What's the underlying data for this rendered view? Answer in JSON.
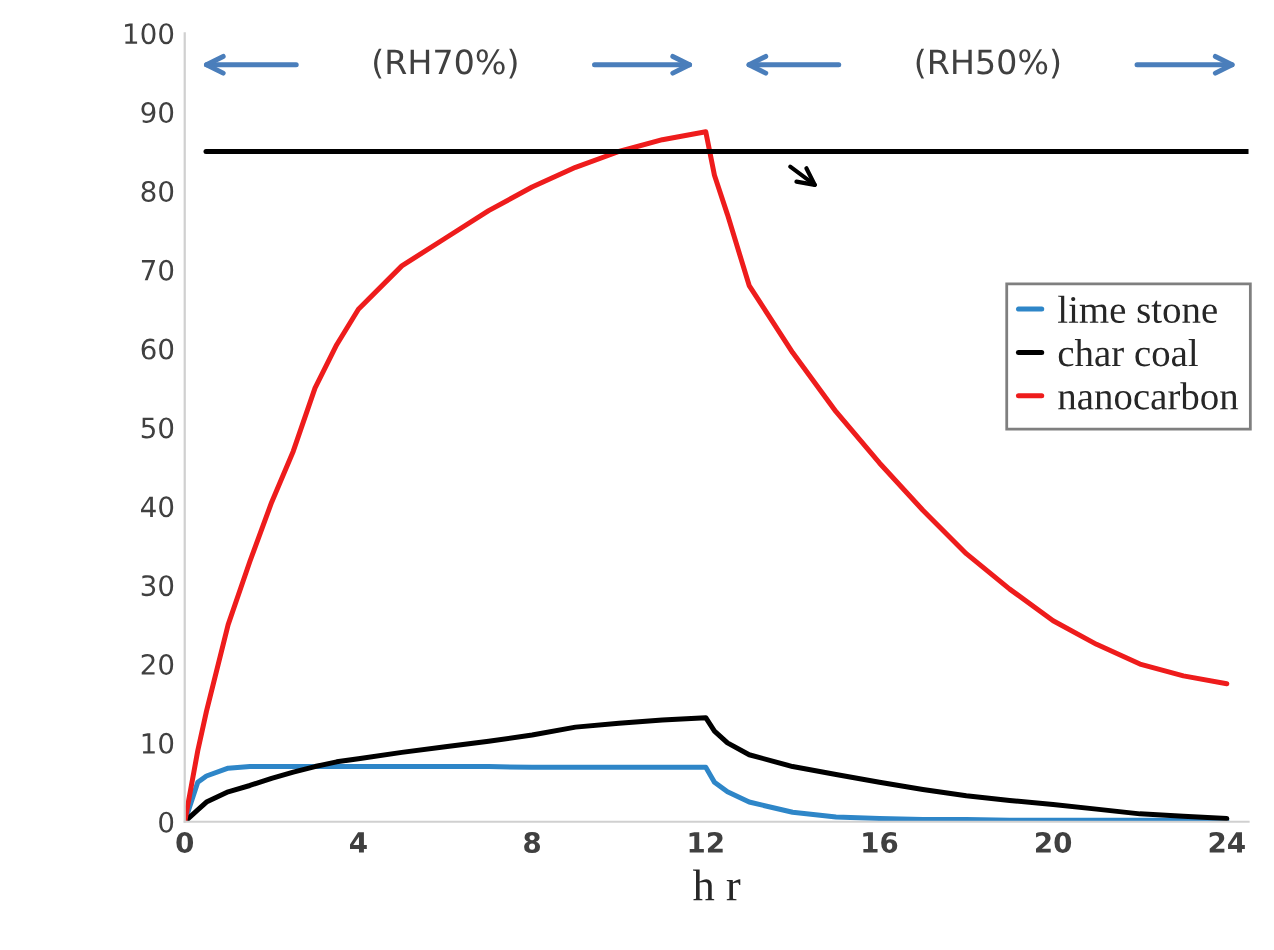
{
  "chart_data": {
    "type": "line",
    "xlabel": "h r",
    "x": [
      0,
      0.3,
      0.5,
      1,
      1.5,
      2,
      2.5,
      3,
      3.5,
      4,
      5,
      6,
      7,
      8,
      9,
      10,
      11,
      12,
      12.2,
      12.5,
      13,
      14,
      15,
      16,
      17,
      18,
      19,
      20,
      21,
      22,
      23,
      24
    ],
    "series": [
      {
        "name": "lime stone",
        "color": "#2e86c8",
        "values": [
          0,
          5,
          5.8,
          6.8,
          7,
          7,
          7,
          7,
          7,
          7,
          7,
          7,
          7,
          6.9,
          6.9,
          6.9,
          6.9,
          6.9,
          5,
          3.8,
          2.5,
          1.2,
          0.6,
          0.4,
          0.3,
          0.3,
          0.2,
          0.2,
          0.2,
          0.2,
          0.2,
          0.2
        ]
      },
      {
        "name": "char coal",
        "color": "#000000",
        "values": [
          0,
          1.5,
          2.5,
          3.8,
          4.6,
          5.5,
          6.3,
          7,
          7.6,
          8,
          8.8,
          9.5,
          10.2,
          11,
          12,
          12.5,
          12.9,
          13.2,
          11.5,
          10,
          8.5,
          7,
          6,
          5,
          4.1,
          3.3,
          2.7,
          2.2,
          1.6,
          1,
          0.7,
          0.4
        ]
      },
      {
        "name": "nanocarbon",
        "color": "#ee1c1c",
        "values": [
          0,
          9,
          14,
          25,
          33,
          40.5,
          47,
          55,
          60.5,
          65,
          70.5,
          74,
          77.5,
          80.5,
          83,
          85,
          86.5,
          87.5,
          82,
          77,
          68,
          59.5,
          52,
          45.5,
          39.5,
          34,
          29.5,
          25.5,
          22.5,
          20,
          18.5,
          17.5
        ]
      }
    ],
    "xlim": [
      0,
      24.5
    ],
    "ylim": [
      0,
      100
    ],
    "xticks": [
      0,
      4,
      8,
      12,
      16,
      20,
      24
    ],
    "yticks": [
      0,
      10,
      20,
      30,
      40,
      50,
      60,
      70,
      80,
      90,
      100
    ],
    "ref_lines": [
      {
        "axis": "y",
        "value": 85,
        "color": "#000000"
      }
    ],
    "annotations": [
      "(RH70%)",
      "(RH50%)"
    ],
    "grid": false,
    "legend": "right",
    "marker": "none",
    "line_style": "solid"
  }
}
